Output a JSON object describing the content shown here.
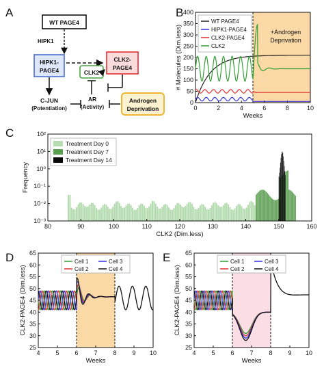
{
  "panel_labels": [
    "A",
    "B",
    "C",
    "D",
    "E"
  ],
  "diagram": {
    "nodes": {
      "wt_page4": "WT PAGE4",
      "hipk1_page4": [
        "HIPK1-",
        "PAGE4"
      ],
      "clk2": "CLK2",
      "clk2_page4": [
        "CLK2-",
        "PAGE4"
      ],
      "cjun": [
        "C-JUN",
        "(Potentiation)"
      ],
      "ar": [
        "AR",
        "(Activity)"
      ],
      "androgen": [
        "Androgen",
        "Deprivation"
      ]
    },
    "edge_labels": {
      "hipk1": "HIPK1"
    },
    "colors": {
      "blue": "#4a6fd0",
      "red": "#e03030",
      "green": "#48a040",
      "orange": "#f2b433"
    }
  },
  "chart_data": [
    {
      "id": "B",
      "type": "line",
      "xlabel": "Weeks",
      "ylabel": "# Molecules (Dim.less)",
      "xlim": [
        0,
        10
      ],
      "ylim": [
        0,
        400
      ],
      "xticks": [
        0,
        2,
        4,
        6,
        8,
        10
      ],
      "yticks": [
        0,
        50,
        100,
        150,
        200,
        250,
        300,
        350,
        400
      ],
      "treatment_start": 5,
      "annotation": [
        "+Androgen",
        "Deprivation"
      ],
      "legend_position": "top-left",
      "series": [
        {
          "name": "WT PAGE4",
          "color": "#222222",
          "key": "wt"
        },
        {
          "name": "HIPK1-PAGE4",
          "color": "#3333dd",
          "key": "hipk1"
        },
        {
          "name": "CLK2-PAGE4",
          "color": "#dd3333",
          "key": "clk2page4"
        },
        {
          "name": "CLK2",
          "color": "#33a033",
          "key": "clk2"
        }
      ]
    },
    {
      "id": "C",
      "type": "bar",
      "xlabel": "CLK2 (Dim.less)",
      "ylabel": "Frequency",
      "xlim": [
        80,
        160
      ],
      "xticks": [
        80,
        90,
        100,
        110,
        120,
        130,
        140,
        150,
        160
      ],
      "ylim_log10": [
        -3,
        2
      ],
      "ytick_labels": [
        "10⁻³",
        "10⁻²",
        "10⁻¹",
        "10⁰",
        "10¹",
        "10²"
      ],
      "legend_position": "top-left",
      "series": [
        {
          "name": "Treatment Day 0",
          "color": "#b5dbb0",
          "range": [
            86,
            143
          ]
        },
        {
          "name": "Treatment Day 7",
          "color": "#5c9e52",
          "range": [
            143,
            155
          ]
        },
        {
          "name": "Treatment Day 14",
          "color": "#0a0a0a",
          "range": [
            150,
            152
          ]
        }
      ]
    },
    {
      "id": "D",
      "type": "line",
      "xlabel": "Weeks",
      "ylabel": "CLK2-PAGE4 (Dim.less)",
      "xlim": [
        4,
        10
      ],
      "ylim": [
        25,
        65
      ],
      "xticks": [
        4,
        5,
        6,
        7,
        8,
        9,
        10
      ],
      "yticks": [
        25,
        30,
        35,
        40,
        45,
        50,
        55,
        60,
        65
      ],
      "shaded": [
        6,
        8
      ],
      "legend_position": "top-center",
      "cells": [
        {
          "name": "Cell 1",
          "color": "#33a033"
        },
        {
          "name": "Cell 2",
          "color": "#dd3333"
        },
        {
          "name": "Cell 3",
          "color": "#3333dd"
        },
        {
          "name": "Cell 4",
          "color": "#111111"
        }
      ]
    },
    {
      "id": "E",
      "type": "line",
      "xlabel": "Weeks",
      "ylabel": "CLK2-PAGE4 (Dim.less)",
      "xlim": [
        4,
        10
      ],
      "ylim": [
        25,
        65
      ],
      "xticks": [
        4,
        5,
        6,
        7,
        8,
        9,
        10
      ],
      "yticks": [
        25,
        30,
        35,
        40,
        45,
        50,
        55,
        60,
        65
      ],
      "shaded": [
        6,
        8
      ],
      "legend_position": "top-center",
      "cells": [
        {
          "name": "Cell 1",
          "color": "#33a033"
        },
        {
          "name": "Cell 2",
          "color": "#dd3333"
        },
        {
          "name": "Cell 3",
          "color": "#3333dd"
        },
        {
          "name": "Cell 4",
          "color": "#111111"
        }
      ]
    }
  ]
}
